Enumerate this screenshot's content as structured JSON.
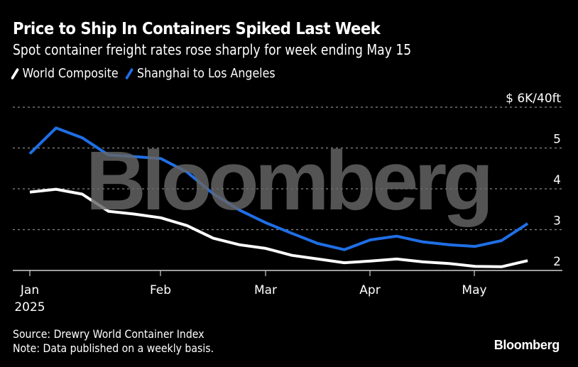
{
  "header": {
    "title": "Price to Ship In Containers Spiked Last Week",
    "subtitle": "Spot container freight rates rose sharply for week ending May 15"
  },
  "legend": [
    {
      "label": "World Composite",
      "color": "#ffffff"
    },
    {
      "label": "Shanghai to Los Angeles",
      "color": "#1f6fe6"
    }
  ],
  "footer": {
    "source": "Source: Drewry World Container Index",
    "note": "Note: Data published on a weekly basis.",
    "brand": "Bloomberg"
  },
  "watermark": "Bloomberg",
  "chart_data": {
    "type": "line",
    "title": "Price to Ship In Containers Spiked Last Week",
    "subtitle": "Spot container freight rates rose sharply for week ending May 15",
    "xlabel": "",
    "ylabel": "$K/40ft",
    "y_unit_label": "$ 6K/40ft",
    "ylim": [
      2,
      6
    ],
    "yticks": [
      2,
      3,
      4,
      5,
      6
    ],
    "ytick_labels": [
      "2",
      "3",
      "4",
      "5",
      "$ 6K/40ft"
    ],
    "grid": true,
    "legend_position": "top-left",
    "x_week_index": [
      0,
      1,
      2,
      3,
      4,
      5,
      6,
      7,
      8,
      9,
      10,
      11,
      12,
      13,
      14,
      15,
      16,
      17,
      18,
      19
    ],
    "x_ticks": [
      {
        "week": 0,
        "label": "Jan",
        "sublabel": "2025"
      },
      {
        "week": 5,
        "label": "Feb",
        "sublabel": ""
      },
      {
        "week": 9,
        "label": "Mar",
        "sublabel": ""
      },
      {
        "week": 13,
        "label": "Apr",
        "sublabel": ""
      },
      {
        "week": 17,
        "label": "May",
        "sublabel": ""
      }
    ],
    "series": [
      {
        "name": "World Composite",
        "color": "#ffffff",
        "values": [
          3.92,
          3.99,
          3.87,
          3.45,
          3.38,
          3.29,
          3.1,
          2.79,
          2.63,
          2.54,
          2.37,
          2.28,
          2.19,
          2.23,
          2.28,
          2.21,
          2.17,
          2.1,
          2.09,
          2.24
        ]
      },
      {
        "name": "Shanghai to Los Angeles",
        "color": "#1f6fe6",
        "values": [
          4.86,
          5.49,
          5.25,
          4.83,
          4.79,
          4.74,
          4.41,
          3.88,
          3.48,
          3.17,
          2.91,
          2.66,
          2.51,
          2.75,
          2.84,
          2.7,
          2.63,
          2.59,
          2.73,
          3.15
        ]
      }
    ]
  }
}
